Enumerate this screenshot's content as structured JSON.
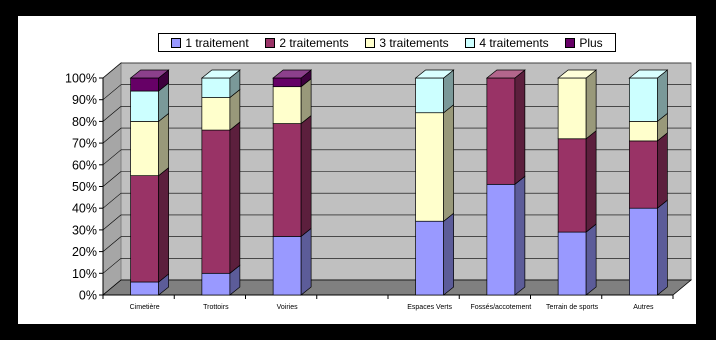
{
  "chart_data": {
    "type": "bar",
    "stacked": true,
    "percent": true,
    "three_d": true,
    "categories": [
      "Cimetière",
      "Trottoirs",
      "Voiries",
      "",
      "Espaces Verts",
      "Fossés/accotement",
      "Terrain de sports",
      "Autres"
    ],
    "series": [
      {
        "name": "1 traitement",
        "color": "#9999ff",
        "values": [
          6,
          10,
          27,
          0,
          34,
          51,
          29,
          40
        ]
      },
      {
        "name": "2 traitements",
        "color": "#993366",
        "values": [
          49,
          66,
          52,
          0,
          0,
          49,
          43,
          31
        ]
      },
      {
        "name": "3 traitements",
        "color": "#ffffcc",
        "values": [
          25,
          15,
          17,
          0,
          50,
          0,
          28,
          9
        ]
      },
      {
        "name": "4 traitements",
        "color": "#ccffff",
        "values": [
          14,
          9,
          0,
          0,
          16,
          0,
          0,
          20
        ]
      },
      {
        "name": "Plus",
        "color": "#660066",
        "values": [
          6,
          0,
          4,
          0,
          0,
          0,
          0,
          0
        ]
      }
    ],
    "yticks": [
      "0%",
      "10%",
      "20%",
      "30%",
      "40%",
      "50%",
      "60%",
      "70%",
      "80%",
      "90%",
      "100%"
    ],
    "ylim": [
      0,
      100
    ],
    "legend_position": "top",
    "grid": true
  }
}
